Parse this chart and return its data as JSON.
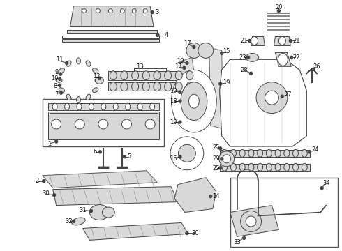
{
  "bg_color": "#ffffff",
  "fig_width": 4.9,
  "fig_height": 3.6,
  "dpi": 100,
  "ec": "#444444",
  "lw": 0.7,
  "gray": "#aaaaaa",
  "lgray": "#d8d8d8",
  "dgray": "#888888"
}
